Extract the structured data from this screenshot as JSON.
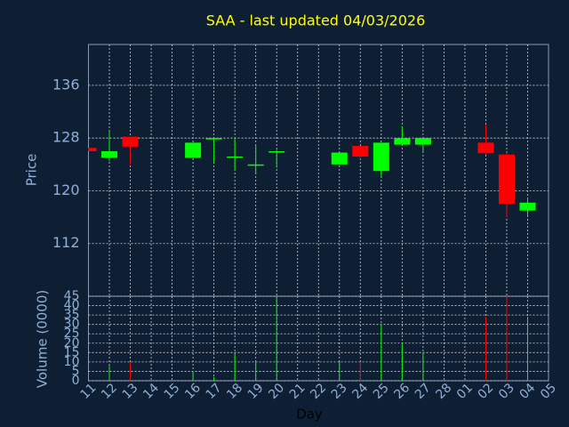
{
  "chart_data": [
    {
      "type": "candlestick",
      "title": "SAA - last updated 04/03/2026",
      "ylabel": "Price",
      "open": [
        126.5,
        125,
        128.2,
        null,
        null,
        125,
        127.8,
        125,
        123.8,
        125.8,
        null,
        null,
        124,
        126.8,
        123,
        127,
        127,
        null,
        null,
        127.3,
        125.5,
        117,
        null
      ],
      "high": [
        126.5,
        129,
        128.2,
        null,
        null,
        127.3,
        128,
        128,
        127,
        126.2,
        null,
        null,
        125.8,
        126.8,
        127.3,
        129.8,
        128,
        null,
        null,
        130,
        125.8,
        119,
        null
      ],
      "low": [
        126,
        124.5,
        124,
        null,
        null,
        125,
        124.3,
        123,
        122.5,
        123.5,
        null,
        null,
        124,
        124.8,
        122,
        126.8,
        126,
        null,
        null,
        125.5,
        116,
        116.2,
        null
      ],
      "close": [
        126,
        126,
        126.7,
        null,
        null,
        127.3,
        128,
        125.2,
        124,
        126,
        null,
        null,
        125.8,
        125.2,
        127.3,
        128,
        128,
        null,
        null,
        125.7,
        118,
        118.2,
        null
      ],
      "up_color": "#00ff00",
      "down_color": "#ff0000",
      "ylim": [
        104,
        142.2
      ],
      "yticks": [
        112,
        120,
        128,
        136
      ],
      "grid": true
    },
    {
      "type": "bar",
      "ylabel": "Volume (0000)",
      "xlabel": "Day",
      "categories": [
        "11",
        "12",
        "13",
        "14",
        "15",
        "16",
        "17",
        "18",
        "19",
        "20",
        "21",
        "22",
        "23",
        "24",
        "25",
        "26",
        "27",
        "28",
        "01",
        "02",
        "03",
        "04",
        "05"
      ],
      "values": [
        null,
        8,
        10,
        null,
        null,
        5,
        2,
        14,
        10,
        45,
        null,
        null,
        10,
        10,
        30,
        20,
        15,
        null,
        null,
        34,
        45,
        34,
        null
      ],
      "ylim": [
        0,
        45
      ],
      "yticks": [
        0,
        5,
        10,
        15,
        20,
        25,
        30,
        35,
        40,
        45
      ],
      "grid": true
    }
  ]
}
